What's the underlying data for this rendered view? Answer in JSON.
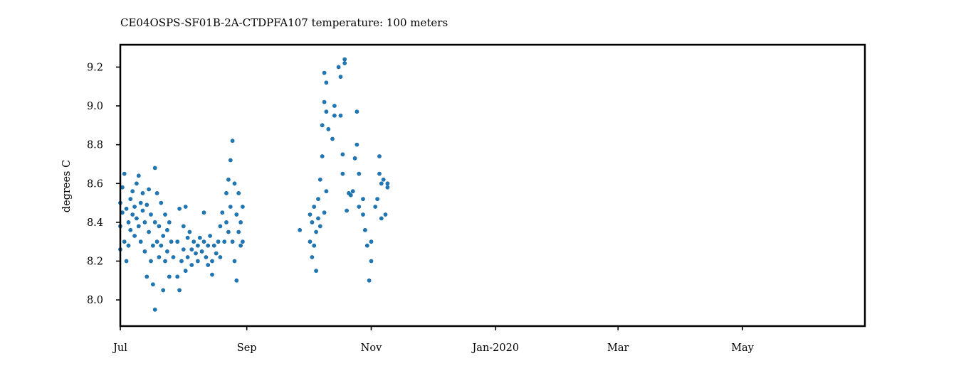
{
  "chart_data": {
    "type": "scatter",
    "title": "CE04OSPS-SF01B-2A-CTDPFA107 temperature: 100 meters",
    "xlabel": "",
    "ylabel": "degrees C",
    "xlim": [
      "2019-07-01",
      "2020-06-30"
    ],
    "ylim": [
      7.865,
      9.315
    ],
    "grid": false,
    "legend": "none",
    "color": "#1f77b4",
    "x_ticks": [
      {
        "date": "2019-07-01",
        "label": "Jul"
      },
      {
        "date": "2019-09-01",
        "label": "Sep"
      },
      {
        "date": "2019-11-01",
        "label": "Nov"
      },
      {
        "date": "2020-01-01",
        "label": "Jan-2020"
      },
      {
        "date": "2020-03-01",
        "label": "Mar"
      },
      {
        "date": "2020-05-01",
        "label": "May"
      }
    ],
    "y_ticks": [
      {
        "value": 8.0,
        "label": "8.0"
      },
      {
        "value": 8.2,
        "label": "8.2"
      },
      {
        "value": 8.4,
        "label": "8.4"
      },
      {
        "value": 8.6,
        "label": "8.6"
      },
      {
        "value": 8.8,
        "label": "8.8"
      },
      {
        "value": 9.0,
        "label": "9.0"
      },
      {
        "value": 9.2,
        "label": "9.2"
      }
    ],
    "series": [
      {
        "points": [
          [
            "2019-07-01",
            8.26
          ],
          [
            "2019-07-01",
            8.38
          ],
          [
            "2019-07-01",
            8.5
          ],
          [
            "2019-07-02",
            8.58
          ],
          [
            "2019-07-02",
            8.45
          ],
          [
            "2019-07-03",
            8.65
          ],
          [
            "2019-07-03",
            8.3
          ],
          [
            "2019-07-04",
            8.47
          ],
          [
            "2019-07-04",
            8.2
          ],
          [
            "2019-07-05",
            8.28
          ],
          [
            "2019-07-05",
            8.4
          ],
          [
            "2019-07-06",
            8.52
          ],
          [
            "2019-07-06",
            8.36
          ],
          [
            "2019-07-07",
            8.44
          ],
          [
            "2019-07-07",
            8.56
          ],
          [
            "2019-07-08",
            8.33
          ],
          [
            "2019-07-08",
            8.48
          ],
          [
            "2019-07-09",
            8.6
          ],
          [
            "2019-07-09",
            8.42
          ],
          [
            "2019-07-10",
            8.64
          ],
          [
            "2019-07-10",
            8.38
          ],
          [
            "2019-07-11",
            8.5
          ],
          [
            "2019-07-11",
            8.3
          ],
          [
            "2019-07-12",
            8.46
          ],
          [
            "2019-07-12",
            8.55
          ],
          [
            "2019-07-13",
            8.25
          ],
          [
            "2019-07-13",
            8.4
          ],
          [
            "2019-07-14",
            8.12
          ],
          [
            "2019-07-14",
            8.49
          ],
          [
            "2019-07-15",
            8.57
          ],
          [
            "2019-07-15",
            8.35
          ],
          [
            "2019-07-16",
            8.2
          ],
          [
            "2019-07-16",
            8.44
          ],
          [
            "2019-07-17",
            8.08
          ],
          [
            "2019-07-17",
            8.28
          ],
          [
            "2019-07-18",
            7.95
          ],
          [
            "2019-07-18",
            8.68
          ],
          [
            "2019-07-18",
            8.4
          ],
          [
            "2019-07-19",
            8.3
          ],
          [
            "2019-07-19",
            8.55
          ],
          [
            "2019-07-20",
            8.22
          ],
          [
            "2019-07-20",
            8.38
          ],
          [
            "2019-07-21",
            8.28
          ],
          [
            "2019-07-21",
            8.5
          ],
          [
            "2019-07-22",
            8.05
          ],
          [
            "2019-07-22",
            8.33
          ],
          [
            "2019-07-23",
            8.44
          ],
          [
            "2019-07-23",
            8.2
          ],
          [
            "2019-07-24",
            8.36
          ],
          [
            "2019-07-24",
            8.25
          ],
          [
            "2019-07-25",
            8.4
          ],
          [
            "2019-07-25",
            8.12
          ],
          [
            "2019-07-26",
            8.3
          ],
          [
            "2019-07-27",
            8.22
          ],
          [
            "2019-07-29",
            8.12
          ],
          [
            "2019-07-29",
            8.3
          ],
          [
            "2019-07-30",
            8.47
          ],
          [
            "2019-07-30",
            8.05
          ],
          [
            "2019-07-31",
            8.2
          ],
          [
            "2019-08-01",
            8.38
          ],
          [
            "2019-08-01",
            8.26
          ],
          [
            "2019-08-02",
            8.48
          ],
          [
            "2019-08-02",
            8.15
          ],
          [
            "2019-08-03",
            8.32
          ],
          [
            "2019-08-03",
            8.22
          ],
          [
            "2019-08-04",
            8.35
          ],
          [
            "2019-08-05",
            8.26
          ],
          [
            "2019-08-05",
            8.18
          ],
          [
            "2019-08-06",
            8.3
          ],
          [
            "2019-08-07",
            8.24
          ],
          [
            "2019-08-08",
            8.28
          ],
          [
            "2019-08-08",
            8.2
          ],
          [
            "2019-08-09",
            8.32
          ],
          [
            "2019-08-10",
            8.25
          ],
          [
            "2019-08-11",
            8.3
          ],
          [
            "2019-08-11",
            8.45
          ],
          [
            "2019-08-12",
            8.22
          ],
          [
            "2019-08-13",
            8.18
          ],
          [
            "2019-08-13",
            8.28
          ],
          [
            "2019-08-14",
            8.33
          ],
          [
            "2019-08-15",
            8.2
          ],
          [
            "2019-08-15",
            8.13
          ],
          [
            "2019-08-16",
            8.28
          ],
          [
            "2019-08-17",
            8.24
          ],
          [
            "2019-08-18",
            8.3
          ],
          [
            "2019-08-19",
            8.38
          ],
          [
            "2019-08-19",
            8.22
          ],
          [
            "2019-08-20",
            8.45
          ],
          [
            "2019-08-21",
            8.3
          ],
          [
            "2019-08-22",
            8.4
          ],
          [
            "2019-08-22",
            8.55
          ],
          [
            "2019-08-23",
            8.62
          ],
          [
            "2019-08-23",
            8.35
          ],
          [
            "2019-08-24",
            8.72
          ],
          [
            "2019-08-24",
            8.48
          ],
          [
            "2019-08-25",
            8.82
          ],
          [
            "2019-08-25",
            8.3
          ],
          [
            "2019-08-26",
            8.6
          ],
          [
            "2019-08-26",
            8.2
          ],
          [
            "2019-08-27",
            8.44
          ],
          [
            "2019-08-27",
            8.1
          ],
          [
            "2019-08-28",
            8.35
          ],
          [
            "2019-08-28",
            8.55
          ],
          [
            "2019-08-29",
            8.28
          ],
          [
            "2019-08-29",
            8.4
          ],
          [
            "2019-08-30",
            8.48
          ],
          [
            "2019-08-30",
            8.3
          ],
          [
            "2019-09-27",
            8.36
          ],
          [
            "2019-10-02",
            8.3
          ],
          [
            "2019-10-02",
            8.44
          ],
          [
            "2019-10-03",
            8.22
          ],
          [
            "2019-10-03",
            8.4
          ],
          [
            "2019-10-04",
            8.28
          ],
          [
            "2019-10-04",
            8.48
          ],
          [
            "2019-10-05",
            8.35
          ],
          [
            "2019-10-05",
            8.15
          ],
          [
            "2019-10-06",
            8.52
          ],
          [
            "2019-10-06",
            8.42
          ],
          [
            "2019-10-07",
            8.62
          ],
          [
            "2019-10-07",
            8.38
          ],
          [
            "2019-10-08",
            8.74
          ],
          [
            "2019-10-08",
            8.9
          ],
          [
            "2019-10-09",
            9.17
          ],
          [
            "2019-10-09",
            9.02
          ],
          [
            "2019-10-09",
            8.45
          ],
          [
            "2019-10-10",
            9.12
          ],
          [
            "2019-10-10",
            8.97
          ],
          [
            "2019-10-10",
            8.56
          ],
          [
            "2019-10-11",
            8.88
          ],
          [
            "2019-10-13",
            8.83
          ],
          [
            "2019-10-14",
            9.0
          ],
          [
            "2019-10-14",
            8.95
          ],
          [
            "2019-10-16",
            9.2
          ],
          [
            "2019-10-17",
            8.95
          ],
          [
            "2019-10-17",
            9.15
          ],
          [
            "2019-10-18",
            8.75
          ],
          [
            "2019-10-18",
            8.65
          ],
          [
            "2019-10-19",
            9.24
          ],
          [
            "2019-10-19",
            9.22
          ],
          [
            "2019-10-20",
            8.46
          ],
          [
            "2019-10-21",
            8.55
          ],
          [
            "2019-10-22",
            8.54
          ],
          [
            "2019-10-23",
            8.56
          ],
          [
            "2019-10-24",
            8.73
          ],
          [
            "2019-10-25",
            8.97
          ],
          [
            "2019-10-25",
            8.8
          ],
          [
            "2019-10-26",
            8.65
          ],
          [
            "2019-10-26",
            8.48
          ],
          [
            "2019-10-28",
            8.44
          ],
          [
            "2019-10-28",
            8.52
          ],
          [
            "2019-10-29",
            8.36
          ],
          [
            "2019-10-30",
            8.28
          ],
          [
            "2019-10-31",
            8.1
          ],
          [
            "2019-11-01",
            8.2
          ],
          [
            "2019-11-01",
            8.3
          ],
          [
            "2019-11-03",
            8.48
          ],
          [
            "2019-11-04",
            8.52
          ],
          [
            "2019-11-05",
            8.74
          ],
          [
            "2019-11-05",
            8.65
          ],
          [
            "2019-11-06",
            8.42
          ],
          [
            "2019-11-06",
            8.6
          ],
          [
            "2019-11-07",
            8.62
          ],
          [
            "2019-11-08",
            8.44
          ],
          [
            "2019-11-09",
            8.58
          ],
          [
            "2019-11-09",
            8.6
          ]
        ]
      }
    ]
  }
}
